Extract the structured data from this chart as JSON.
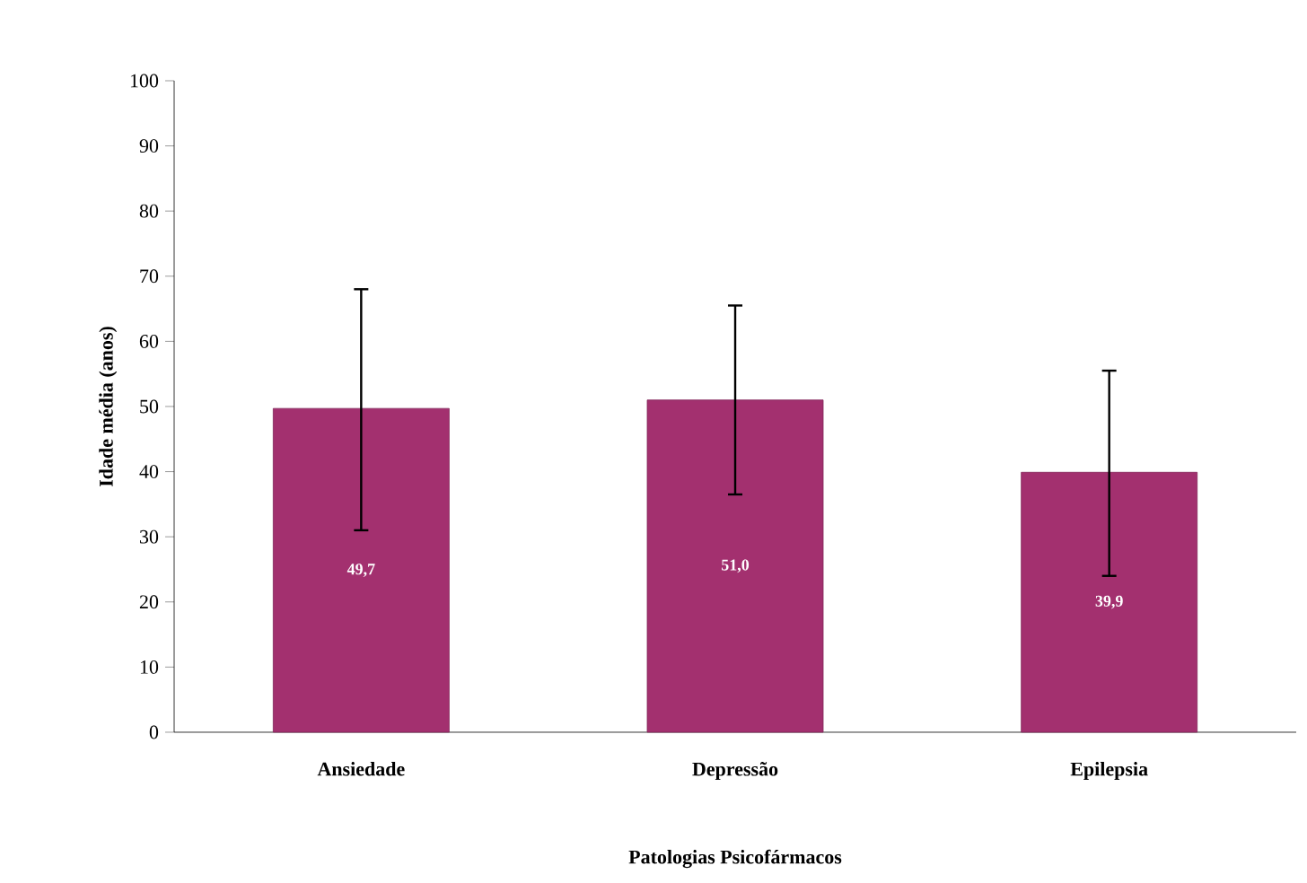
{
  "chart_data": {
    "type": "bar",
    "xlabel": "Patologias Psicofármacos",
    "ylabel": "Idade média (anos)",
    "categories": [
      "Ansiedade",
      "Depressão",
      "Epilepsia"
    ],
    "values": [
      49.7,
      51.0,
      39.9
    ],
    "value_labels": [
      "49,7",
      "51,0",
      "39,9"
    ],
    "errors": [
      [
        31,
        68
      ],
      [
        36.5,
        65.5
      ],
      [
        24,
        55.5
      ]
    ],
    "color": "#a3306f",
    "ylim": [
      0,
      100
    ],
    "yticks": [
      0,
      10,
      20,
      30,
      40,
      50,
      60,
      70,
      80,
      90,
      100
    ],
    "grid": false
  }
}
